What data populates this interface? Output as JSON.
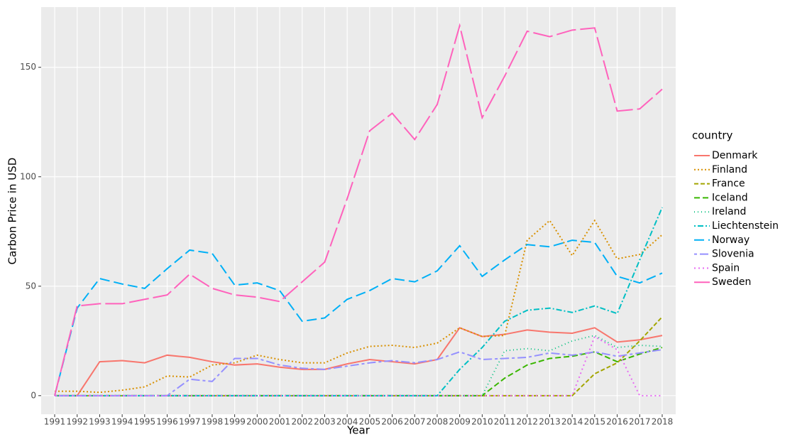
{
  "chart_data": {
    "type": "line",
    "x_label": "Year",
    "y_label": "Carbon Price in USD",
    "legend_title": "country",
    "categories": [
      "1991",
      "1992",
      "1993",
      "1994",
      "1995",
      "1996",
      "1997",
      "1998",
      "1999",
      "2000",
      "2001",
      "2002",
      "2003",
      "2004",
      "2005",
      "2006",
      "2007",
      "2008",
      "2009",
      "2010",
      "2011",
      "2012",
      "2013",
      "2014",
      "2015",
      "2016",
      "2017",
      "2018"
    ],
    "ylim": [
      -8.5,
      177.5
    ],
    "yticks": [
      0,
      50,
      100,
      150
    ],
    "grid": true,
    "legend_position": "right",
    "series": [
      {
        "name": "Denmark",
        "color": "#F8766D",
        "dash": "solid",
        "values": [
          0,
          0,
          15.5,
          16,
          15,
          18.5,
          17.5,
          15.5,
          14,
          14.5,
          13,
          12,
          12,
          14.5,
          16.5,
          15.5,
          14.5,
          16.5,
          31,
          27,
          28,
          30,
          29,
          28.5,
          31,
          24.5,
          25.5,
          27.5
        ]
      },
      {
        "name": "Finland",
        "color": "#D89000",
        "dash": "dotted",
        "values": [
          2,
          2,
          1.5,
          2.5,
          4,
          9,
          8.5,
          14,
          15,
          18.5,
          16.5,
          15,
          15,
          19.5,
          22.5,
          23,
          22,
          24,
          31,
          27,
          27.5,
          71,
          80,
          64,
          80,
          62.5,
          64.5,
          73.5
        ]
      },
      {
        "name": "France",
        "color": "#A3A500",
        "dash": "dashed",
        "values": [
          0,
          0,
          0,
          0,
          0,
          0,
          0,
          0,
          0,
          0,
          0,
          0,
          0,
          0,
          0,
          0,
          0,
          0,
          0,
          0,
          0,
          0,
          0,
          0,
          10,
          15,
          25,
          36
        ]
      },
      {
        "name": "Iceland",
        "color": "#39B600",
        "dash": "longdash",
        "values": [
          0,
          0,
          0,
          0,
          0,
          0,
          0,
          0,
          0,
          0,
          0,
          0,
          0,
          0,
          0,
          0,
          0,
          0,
          0,
          0,
          8,
          14,
          17,
          18,
          20,
          15.5,
          19,
          22
        ]
      },
      {
        "name": "Ireland",
        "color": "#00BF7D",
        "dash": "fine-dotted",
        "values": [
          0,
          0,
          0,
          0,
          0,
          0,
          0,
          0,
          0,
          0,
          0,
          0,
          0,
          0,
          0,
          0,
          0,
          0,
          0,
          0,
          20.5,
          21.5,
          20.5,
          25,
          27.5,
          22,
          23,
          22.5
        ]
      },
      {
        "name": "Liechtenstein",
        "color": "#00BFC4",
        "dash": "dotdash",
        "values": [
          0,
          0,
          0,
          0,
          0,
          0,
          0,
          0,
          0,
          0,
          0,
          0,
          0,
          0,
          0,
          0,
          0,
          0,
          12,
          22,
          34,
          39,
          40,
          38,
          41,
          37.5,
          62,
          86
        ]
      },
      {
        "name": "Norway",
        "color": "#00B0F6",
        "dash": "long",
        "values": [
          0,
          40,
          53.5,
          51,
          49,
          58,
          66.5,
          65,
          50.5,
          51.5,
          48,
          34,
          35.5,
          44,
          48,
          53.5,
          52,
          57,
          68.5,
          54.5,
          62,
          69,
          68,
          71,
          70,
          54.5,
          51.5,
          56
        ]
      },
      {
        "name": "Slovenia",
        "color": "#9590FF",
        "dash": "twodash",
        "values": [
          0,
          0,
          0,
          0,
          0,
          0,
          7.5,
          6.5,
          17,
          17,
          14,
          12.5,
          12,
          13.5,
          15,
          16,
          15,
          16.5,
          20,
          16.5,
          17,
          17.5,
          19.5,
          18.5,
          20,
          18,
          19.5,
          21
        ]
      },
      {
        "name": "Spain",
        "color": "#E76BF3",
        "dash": "dots",
        "values": [
          0,
          0,
          0,
          0,
          0,
          0,
          0,
          0,
          0,
          0,
          0,
          0,
          0,
          0,
          0,
          0,
          0,
          0,
          0,
          0,
          0,
          0,
          0,
          0,
          27,
          21,
          0,
          0
        ]
      },
      {
        "name": "Sweden",
        "color": "#FF62BC",
        "dash": "verylong",
        "values": [
          0,
          41,
          42,
          42,
          44,
          46,
          55.5,
          49,
          46,
          45,
          43,
          52,
          61,
          90,
          121,
          129,
          117,
          133,
          169,
          127,
          146,
          166.5,
          164,
          167,
          168,
          130,
          131,
          140
        ]
      }
    ]
  }
}
